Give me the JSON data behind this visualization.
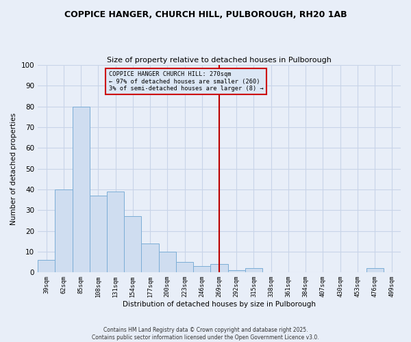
{
  "title": "COPPICE HANGER, CHURCH HILL, PULBOROUGH, RH20 1AB",
  "subtitle": "Size of property relative to detached houses in Pulborough",
  "xlabel": "Distribution of detached houses by size in Pulborough",
  "ylabel": "Number of detached properties",
  "categories": [
    "39sqm",
    "62sqm",
    "85sqm",
    "108sqm",
    "131sqm",
    "154sqm",
    "177sqm",
    "200sqm",
    "223sqm",
    "246sqm",
    "269sqm",
    "292sqm",
    "315sqm",
    "338sqm",
    "361sqm",
    "384sqm",
    "407sqm",
    "430sqm",
    "453sqm",
    "476sqm",
    "499sqm"
  ],
  "values": [
    6,
    40,
    80,
    37,
    39,
    27,
    14,
    10,
    5,
    3,
    4,
    1,
    2,
    0,
    0,
    0,
    0,
    0,
    0,
    2,
    0
  ],
  "bar_color": "#cfddf0",
  "bar_edge_color": "#7badd6",
  "bg_color": "#e8eef8",
  "grid_color": "#c8d4e8",
  "vline_x": 10,
  "vline_color": "#bb0000",
  "annotation_box_text": "COPPICE HANGER CHURCH HILL: 270sqm\n← 97% of detached houses are smaller (260)\n3% of semi-detached houses are larger (8) →",
  "annotation_box_color": "#cc0000",
  "annotation_box_face": "#dce7f5",
  "ylim": [
    0,
    100
  ],
  "yticks": [
    0,
    10,
    20,
    30,
    40,
    50,
    60,
    70,
    80,
    90,
    100
  ],
  "footnote1": "Contains HM Land Registry data © Crown copyright and database right 2025.",
  "footnote2": "Contains public sector information licensed under the Open Government Licence v3.0."
}
